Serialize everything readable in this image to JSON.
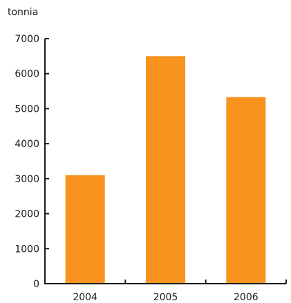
{
  "chart_data": {
    "type": "bar",
    "title": "",
    "xlabel": "",
    "ylabel": "tonnia",
    "categories": [
      "2004",
      "2005",
      "2006"
    ],
    "values": [
      3100,
      6500,
      5330
    ],
    "ylim": [
      0,
      7000
    ],
    "yticks": [
      "0",
      "1000",
      "2000",
      "3000",
      "4000",
      "5000",
      "6000",
      "7000"
    ],
    "grid": false,
    "legend": "none"
  },
  "colors": {
    "bar": "#f7931e",
    "axis": "#1a1a1a",
    "text": "#1a1a1a",
    "background": "#ffffff"
  }
}
